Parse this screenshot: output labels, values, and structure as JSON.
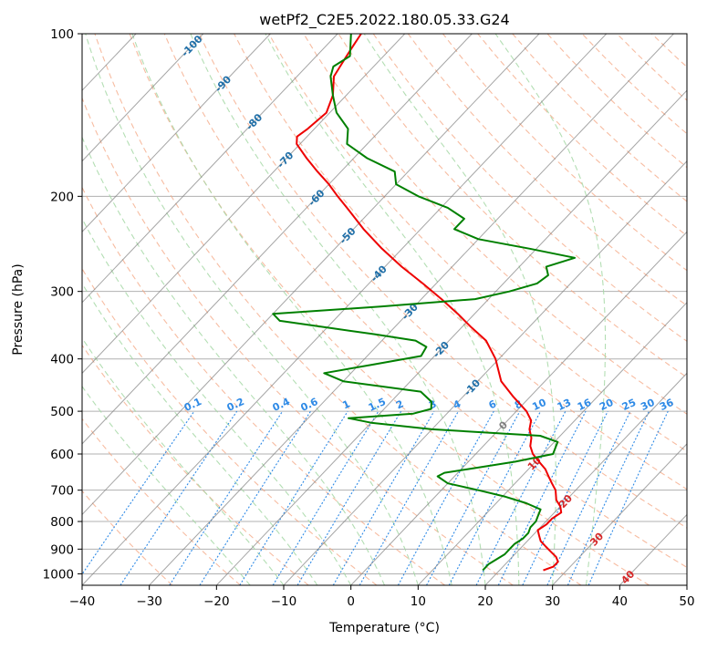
{
  "chart_data": {
    "type": "line",
    "subtype": "skew-T log-P diagram",
    "title": "wetPf2_C2E5.2022.180.05.33.G24",
    "xlabel": "Temperature (°C)",
    "ylabel": "Pressure (hPa)",
    "xlim": [
      -40,
      50
    ],
    "ylim": [
      1050,
      100
    ],
    "y_scale": "log",
    "grid": true,
    "x_ticks": [
      -40,
      -30,
      -20,
      -10,
      0,
      10,
      20,
      30,
      40,
      50
    ],
    "x_tick_labels": [
      "−40",
      "−30",
      "−20",
      "−10",
      "0",
      "10",
      "20",
      "30",
      "40",
      "50"
    ],
    "y_ticks": [
      100,
      200,
      300,
      400,
      500,
      600,
      700,
      800,
      900,
      1000
    ],
    "y_tick_labels": [
      "100",
      "200",
      "300",
      "400",
      "500",
      "600",
      "700",
      "800",
      "900",
      "1000"
    ],
    "colors": {
      "temperature": "#ee0000",
      "dewpoint": "#008000",
      "isotherm": "#7f7f7f",
      "dry_adiabat": "#f4a582",
      "moist_adiabat": "#a6d8a6",
      "mixing_ratio": "#2e8ae6",
      "isotherm_label_cold": "#1f6fa8",
      "isotherm_label_warm": "#d62728",
      "isotherm_label_zero": "#7f7f7f"
    },
    "series": [
      {
        "name": "Temperature",
        "p": [
          985,
          970,
          950,
          930,
          910,
          890,
          870,
          850,
          830,
          810,
          790,
          770,
          750,
          730,
          700,
          680,
          660,
          640,
          620,
          600,
          580,
          560,
          540,
          520,
          500,
          470,
          440,
          400,
          370,
          350,
          330,
          310,
          290,
          270,
          250,
          230,
          210,
          200,
          190,
          180,
          170,
          160,
          155,
          150,
          140,
          130,
          120,
          110,
          105,
          100
        ],
        "t": [
          26.5,
          27.5,
          27.5,
          26.5,
          25.0,
          23.5,
          22.0,
          21.0,
          20.0,
          20.5,
          20.5,
          21.0,
          20.0,
          18.5,
          17.0,
          15.5,
          14.0,
          12.5,
          10.5,
          8.5,
          7.0,
          6.0,
          4.5,
          3.5,
          1.5,
          -2.5,
          -6.5,
          -10.5,
          -14.5,
          -18.5,
          -22.5,
          -27.0,
          -32.0,
          -37.5,
          -43.0,
          -48.5,
          -54.0,
          -57.0,
          -60.0,
          -63.5,
          -67.0,
          -70.5,
          -71.5,
          -71.0,
          -70.5,
          -72.0,
          -74.5,
          -75.5,
          -76.0,
          -76.5
        ]
      },
      {
        "name": "Dewpoint",
        "p": [
          985,
          960,
          940,
          920,
          900,
          880,
          860,
          840,
          820,
          800,
          780,
          760,
          740,
          720,
          700,
          680,
          660,
          650,
          640,
          620,
          600,
          585,
          570,
          555,
          540,
          525,
          515,
          505,
          495,
          480,
          460,
          440,
          425,
          410,
          395,
          380,
          370,
          360,
          350,
          340,
          330,
          320,
          310,
          300,
          290,
          280,
          270,
          260,
          250,
          240,
          230,
          220,
          210,
          200,
          190,
          180,
          170,
          160,
          150,
          140,
          130,
          120,
          115,
          110,
          100
        ],
        "t": [
          17.5,
          17.5,
          18.0,
          18.5,
          18.5,
          18.5,
          19.0,
          19.0,
          18.5,
          18.5,
          18.0,
          17.5,
          14.5,
          10.5,
          5.5,
          0.0,
          -2.5,
          -2.0,
          1.0,
          7.0,
          11.5,
          11.0,
          10.5,
          7.0,
          -10.0,
          -20.0,
          -24.0,
          -15.0,
          -13.0,
          -14.0,
          -17.0,
          -30.0,
          -34.0,
          -28.0,
          -22.0,
          -22.5,
          -25.0,
          -32.0,
          -40.0,
          -48.0,
          -50.0,
          -35.0,
          -22.0,
          -18.0,
          -15.0,
          -14.5,
          -16.0,
          -13.0,
          -21.0,
          -30.0,
          -35.0,
          -35.0,
          -39.0,
          -45.0,
          -50.0,
          -52.0,
          -58.0,
          -63.0,
          -65.0,
          -69.0,
          -72.0,
          -75.0,
          -76.0,
          -75.0,
          -78.0
        ]
      }
    ],
    "isotherm_labels": [
      "-100",
      "-90",
      "-80",
      "-70",
      "-60",
      "-50",
      "-40",
      "-30",
      "-20",
      "-10",
      "0",
      "10",
      "20",
      "30",
      "40"
    ],
    "isotherm_label_values": [
      -100,
      -90,
      -80,
      -70,
      -60,
      -50,
      -40,
      -30,
      -20,
      -10,
      0,
      10,
      20,
      30,
      40
    ],
    "mixing_ratio_labels": [
      "0.1",
      "0.2",
      "0.4",
      "0.6",
      "1",
      "1.5",
      "2",
      "3",
      "4",
      "6",
      "8",
      "10",
      "13",
      "16",
      "20",
      "25",
      "30",
      "36"
    ],
    "mixing_ratio_values": [
      0.1,
      0.2,
      0.4,
      0.6,
      1,
      1.5,
      2,
      3,
      4,
      6,
      8,
      10,
      13,
      16,
      20,
      25,
      30,
      36
    ]
  }
}
